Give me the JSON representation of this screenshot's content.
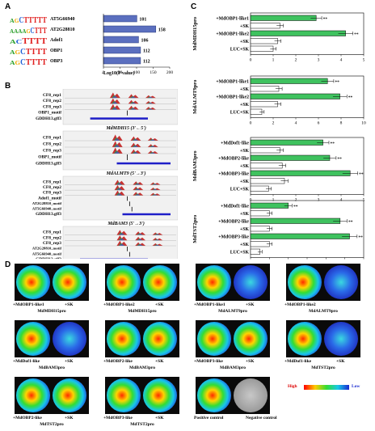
{
  "panels": {
    "A": "A",
    "B": "B",
    "C": "C",
    "D": "D"
  },
  "panelA": {
    "bars": [
      {
        "label": "AT5G66940",
        "value": 101
      },
      {
        "label": "AT2G28810",
        "value": 158
      },
      {
        "label": "Adof1",
        "value": 106
      },
      {
        "label": "OBP1",
        "value": 112
      },
      {
        "label": "OBP3",
        "value": 112
      }
    ],
    "xticks": [
      "0",
      "50",
      "100",
      "150",
      "200"
    ],
    "xlabel": "-Log10(P value)",
    "logo_letters": [
      "AGCTTTTT",
      "AAAAGCTTT",
      "ACTTTT",
      "AGCTTTT",
      "AGCTTTT"
    ]
  },
  "panelB": {
    "tracks": [
      {
        "rows": [
          "CF8_rep1",
          "CF8_rep2",
          "CF8_rep3",
          "OBP1_motif",
          "GDDH13.gff3"
        ],
        "gene": "MdMDH15 (3'←5')"
      },
      {
        "rows": [
          "CF8_rep1",
          "CF8_rep2",
          "CF8_rep3",
          "OBP1_motif",
          "GDDH13.gff3"
        ],
        "gene": "MdALMT9 (5'→3')"
      },
      {
        "rows": [
          "CF8_rep1",
          "CF8_rep2",
          "CF8_rep3",
          "Adof1_motif",
          "AT2G28810_motif",
          "AT5G66940_motif",
          "GDDH13.gff3"
        ],
        "gene": "MdBAM3 (5'→3')"
      },
      {
        "rows": [
          "CF8_rep1",
          "CF8_rep2",
          "CF8_rep3",
          "AT2G28810_motif",
          "AT5G66940_motif",
          "GDDH13.gff3"
        ],
        "gene": "MdTST2 (3'←5')"
      }
    ]
  },
  "chart_data": [
    {
      "type": "bar",
      "ylabel": "MdMDH15pro",
      "categories": [
        "+MdOBP1-like1",
        "+SK",
        "+MdOBP1-like2",
        "+SK",
        "LUC+SK"
      ],
      "values": [
        2.9,
        1.3,
        4.2,
        1.2,
        1.0
      ],
      "colors": [
        "#3fc25f",
        "#ffffff",
        "#3fc25f",
        "#ffffff",
        "#ffffff"
      ],
      "sig": [
        "**",
        "",
        "**",
        "",
        ""
      ],
      "xticks": [
        "0",
        "1",
        "2",
        "3",
        "4",
        "5"
      ],
      "xlim": [
        0,
        5
      ]
    },
    {
      "type": "bar",
      "ylabel": "MdALMT9pro",
      "categories": [
        "+MdOBP1-like1",
        "+SK",
        "+MdOBP1-like2",
        "+SK",
        "LUC+SK"
      ],
      "values": [
        6.8,
        2.5,
        7.9,
        2.4,
        1.0
      ],
      "colors": [
        "#3fc25f",
        "#ffffff",
        "#3fc25f",
        "#ffffff",
        "#ffffff"
      ],
      "sig": [
        "**",
        "",
        "**",
        "",
        ""
      ],
      "xticks": [
        "0",
        "2",
        "4",
        "6",
        "8",
        "10"
      ],
      "xlim": [
        0,
        10
      ]
    },
    {
      "type": "bar",
      "ylabel": "MdBAM3pro",
      "categories": [
        "+MdDof1-like",
        "+SK",
        "+MdOBP2-like",
        "+SK",
        "+MdOBP3-like",
        "+SK",
        "LUC+SK"
      ],
      "values": [
        3.2,
        1.3,
        3.5,
        1.4,
        4.4,
        1.5,
        0.8
      ],
      "colors": [
        "#3fc25f",
        "#ffffff",
        "#3fc25f",
        "#ffffff",
        "#3fc25f",
        "#ffffff",
        "#ffffff"
      ],
      "sig": [
        "**",
        "",
        "**",
        "",
        "**",
        "",
        ""
      ],
      "xticks": [
        "0",
        "1",
        "2",
        "3",
        "4",
        "5"
      ],
      "xlim": [
        0,
        5
      ]
    },
    {
      "type": "bar",
      "ylabel": "MdTST2pro",
      "categories": [
        "+MdDof1-like",
        "+SK",
        "+MdOBP2-like",
        "+SK",
        "+MdOBP3-like",
        "+SK",
        "LUC+SK"
      ],
      "values": [
        4.0,
        2.0,
        9.5,
        2.0,
        10.5,
        2.0,
        1.0
      ],
      "colors": [
        "#3fc25f",
        "#ffffff",
        "#3fc25f",
        "#ffffff",
        "#3fc25f",
        "#ffffff",
        "#ffffff"
      ],
      "sig": [
        "**",
        "",
        "**",
        "",
        "**",
        "",
        ""
      ],
      "xticks": [
        "0",
        "2",
        "4",
        "6",
        "8",
        "10",
        "12"
      ],
      "xlim": [
        0,
        12
      ]
    }
  ],
  "panelD": {
    "plates": [
      {
        "left": "+MdOBP1-like1",
        "right": "+SK",
        "title": "MdMDH15pro"
      },
      {
        "left": "+MdOBP1-like2",
        "right": "+SK",
        "title": "MdMDH15pro"
      },
      {
        "left": "+MdOBP1-like1",
        "right": "+SK",
        "title": "MdALMT9pro"
      },
      {
        "left": "+MdOBP1-like2",
        "right": "",
        "title": "MdALMT9pro"
      },
      {
        "left": "+MdDof1-like",
        "right": "+SK",
        "title": "MdBAM3pro"
      },
      {
        "left": "+MdOBP2-like",
        "right": "+SK",
        "title": "MdBAM3pro"
      },
      {
        "left": "+MdOBP3-like",
        "right": "+SK",
        "title": "MdBAM3pro"
      },
      {
        "left": "+MdDof1-like",
        "right": "+SK",
        "title": "MdTST2pro"
      },
      {
        "left": "+MdOBP2-like",
        "right": "+SK",
        "title": "MdTST2pro"
      },
      {
        "left": "+MdOBP3-like",
        "right": "+SK",
        "title": "MdTST2pro"
      },
      {
        "left": "Positive control",
        "right": "Negative control",
        "title": ""
      }
    ],
    "scale_high": "High",
    "scale_low": "Low"
  }
}
